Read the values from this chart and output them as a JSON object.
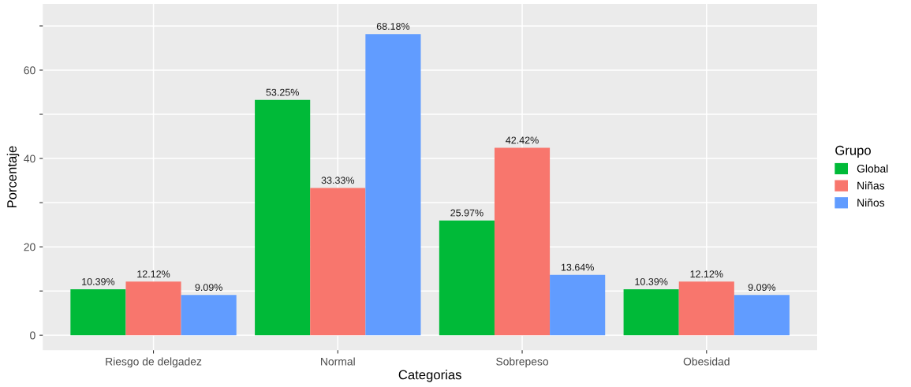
{
  "chart_data": {
    "type": "bar",
    "xlabel": "Categorias",
    "ylabel": "Porcentaje",
    "legend_title": "Grupo",
    "legend": "right",
    "grid": true,
    "categories": [
      "Riesgo de delgadez",
      "Normal",
      "Sobrepeso",
      "Obesidad"
    ],
    "series": [
      {
        "name": "Global",
        "color": "#00ba38",
        "values": [
          10.39,
          53.25,
          25.97,
          10.39
        ],
        "value_labels": [
          "10.39%",
          "53.25%",
          "25.97%",
          "10.39%"
        ]
      },
      {
        "name": "Niñas",
        "color": "#f8766d",
        "values": [
          12.12,
          33.33,
          42.42,
          12.12
        ],
        "value_labels": [
          "12.12%",
          "33.33%",
          "42.42%",
          "12.12%"
        ]
      },
      {
        "name": "Niños",
        "color": "#619cff",
        "values": [
          9.09,
          68.18,
          13.64,
          9.09
        ],
        "value_labels": [
          "9.09%",
          "68.18%",
          "13.64%",
          "9.09%"
        ]
      }
    ],
    "ylim": [
      -3.41,
      75
    ],
    "yticks": [
      0,
      {
        "value": 10,
        "label": null
      },
      20,
      {
        "value": 30,
        "label": null
      },
      40,
      {
        "value": 50,
        "label": null
      },
      60,
      {
        "value": 70,
        "label": null
      }
    ]
  }
}
